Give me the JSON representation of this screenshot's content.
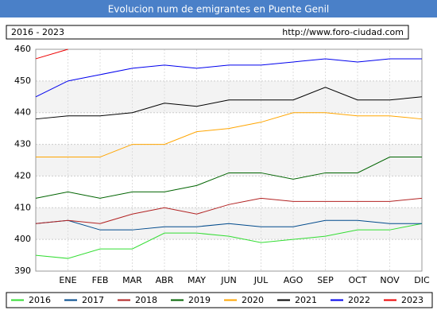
{
  "chart_data": {
    "type": "line",
    "title": "Evolucion num de emigrantes en Puente Genil",
    "period": "2016 - 2023",
    "source": "http://www.foro-ciudad.com",
    "categories": [
      null,
      "ENE",
      "FEB",
      "MAR",
      "ABR",
      "MAY",
      "JUN",
      "JUL",
      "AGO",
      "SEP",
      "OCT",
      "NOV",
      "DIC"
    ],
    "series": [
      {
        "name": "2016",
        "color": "#33dd33",
        "values": [
          395,
          394,
          397,
          397,
          402,
          402,
          401,
          399,
          400,
          401,
          403,
          403,
          405
        ]
      },
      {
        "name": "2017",
        "color": "#004a8c",
        "values": [
          405,
          406,
          403,
          403,
          404,
          404,
          405,
          404,
          404,
          406,
          406,
          405,
          405
        ]
      },
      {
        "name": "2018",
        "color": "#b22222",
        "values": [
          405,
          406,
          405,
          408,
          410,
          408,
          411,
          413,
          412,
          412,
          412,
          412,
          413
        ]
      },
      {
        "name": "2019",
        "color": "#006400",
        "values": [
          413,
          415,
          413,
          415,
          415,
          417,
          421,
          421,
          419,
          421,
          421,
          426,
          426
        ]
      },
      {
        "name": "2020",
        "color": "#ffa500",
        "values": [
          426,
          426,
          426,
          430,
          430,
          434,
          435,
          437,
          440,
          440,
          439,
          439,
          438
        ]
      },
      {
        "name": "2021",
        "color": "#000000",
        "values": [
          438,
          439,
          439,
          440,
          443,
          442,
          444,
          444,
          444,
          448,
          444,
          444,
          445
        ]
      },
      {
        "name": "2022",
        "color": "#0000ee",
        "values": [
          445,
          450,
          452,
          454,
          455,
          454,
          455,
          455,
          456,
          457,
          456,
          457,
          457
        ]
      },
      {
        "name": "2023",
        "color": "#ee0000",
        "values": [
          457,
          460,
          null,
          null,
          null,
          null,
          null,
          null,
          null,
          null,
          null,
          null,
          null
        ]
      }
    ],
    "ylim": [
      390,
      460
    ],
    "yticks": [
      390,
      400,
      410,
      420,
      430,
      440,
      450,
      460
    ],
    "grid": true
  }
}
